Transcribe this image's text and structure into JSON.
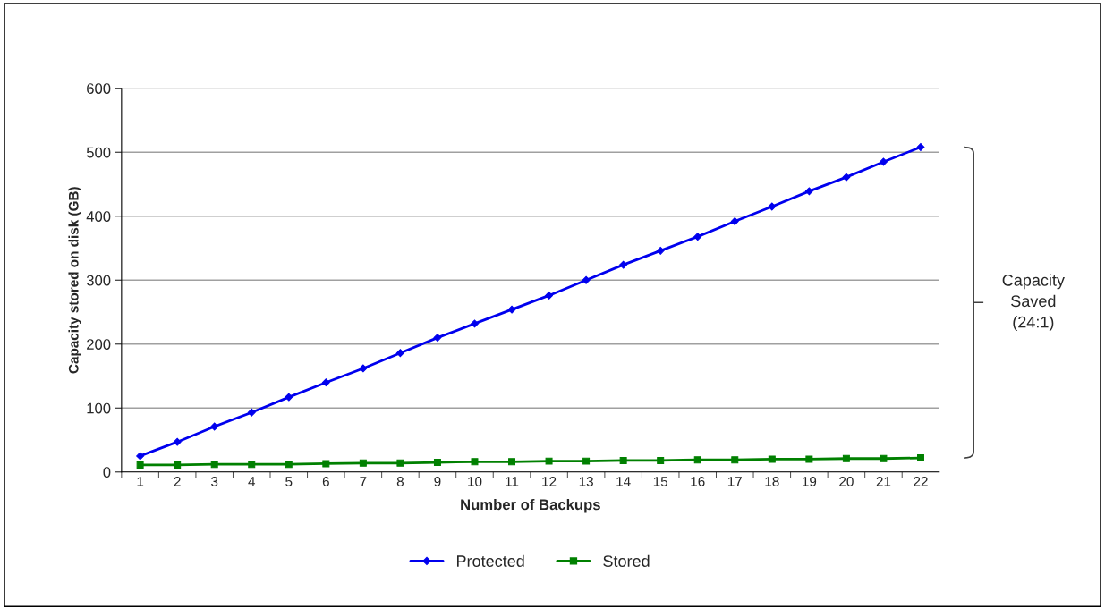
{
  "chart_data": {
    "type": "line",
    "xlabel": "Number of Backups",
    "ylabel": "Capacity stored on disk (GB)",
    "categories": [
      "1",
      "2",
      "3",
      "4",
      "5",
      "6",
      "7",
      "8",
      "9",
      "10",
      "11",
      "12",
      "13",
      "14",
      "15",
      "16",
      "17",
      "18",
      "19",
      "20",
      "21",
      "22"
    ],
    "series": [
      {
        "name": "Protected",
        "color": "#0000ee",
        "marker": "diamond",
        "values": [
          25,
          47,
          71,
          93,
          117,
          140,
          162,
          186,
          210,
          232,
          254,
          276,
          300,
          324,
          346,
          368,
          392,
          415,
          439,
          461,
          485,
          508
        ]
      },
      {
        "name": "Stored",
        "color": "#008000",
        "marker": "square",
        "values": [
          11,
          11,
          12,
          12,
          12,
          13,
          14,
          14,
          15,
          16,
          16,
          17,
          17,
          18,
          18,
          19,
          19,
          20,
          20,
          21,
          21,
          22
        ]
      }
    ],
    "ylim": [
      0,
      600
    ],
    "yticks": [
      0,
      100,
      200,
      300,
      400,
      500,
      600
    ],
    "grid": "y",
    "legend": "bottom",
    "annotations": [
      "Capacity\nSaved\n(24:1)"
    ]
  }
}
